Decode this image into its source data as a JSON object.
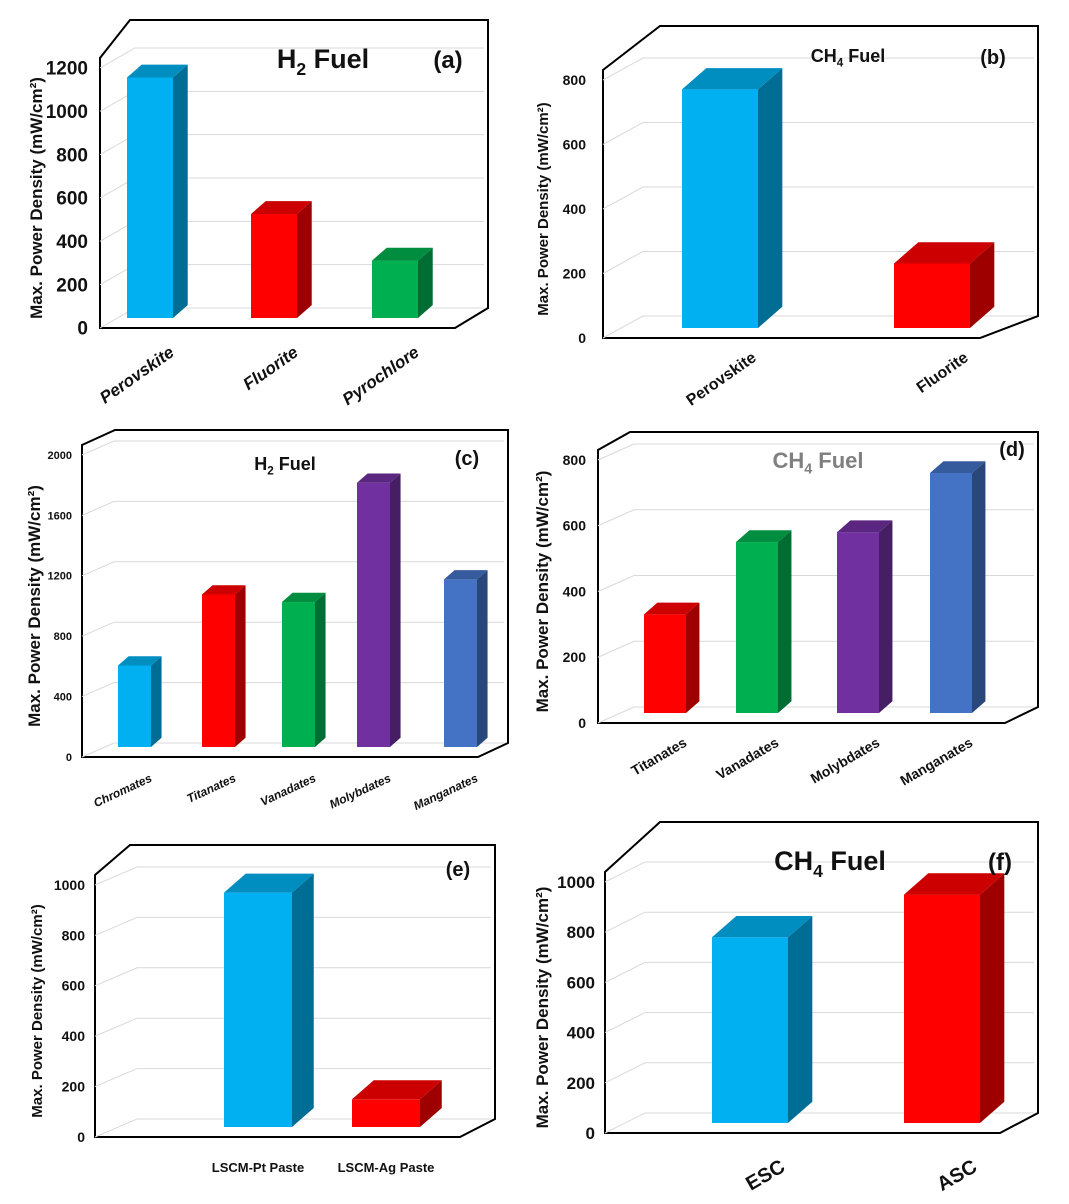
{
  "colors": {
    "blue_light": "#00B0F0",
    "red": "#FF0000",
    "green": "#00B050",
    "purple": "#7030A0",
    "blue_dark": "#4472C4"
  },
  "chart_data": [
    {
      "panel": "(a)",
      "type": "bar",
      "title": "H₂ Fuel",
      "ylabel": "Max. Power Density (mW/cm²)",
      "xlabel": "",
      "ylim": [
        0,
        1200
      ],
      "yticks": [
        0,
        200,
        400,
        600,
        800,
        1000,
        1200
      ],
      "categories": [
        "Perovskite",
        "Fluorite",
        "Pyrochlore"
      ],
      "values": [
        1110,
        480,
        265
      ],
      "colors": [
        "#00B0F0",
        "#FF0000",
        "#00B050"
      ]
    },
    {
      "panel": "(b)",
      "type": "bar",
      "title": "CH₄ Fuel",
      "ylabel": "Max. Power Density (mW/cm²)",
      "xlabel": "",
      "ylim": [
        0,
        800
      ],
      "yticks": [
        0,
        200,
        400,
        600,
        800
      ],
      "categories": [
        "Perovskite",
        "Fluorite"
      ],
      "values": [
        740,
        200
      ],
      "colors": [
        "#00B0F0",
        "#FF0000"
      ]
    },
    {
      "panel": "(c)",
      "type": "bar",
      "title": "H₂ Fuel",
      "ylabel": "Max. Power Density (mW/cm²)",
      "xlabel": "",
      "ylim": [
        0,
        2000
      ],
      "yticks": [
        0,
        400,
        800,
        1200,
        1600,
        2000
      ],
      "categories": [
        "Chromates",
        "Titanates",
        "Vanadates",
        "Molybdates",
        "Manganates"
      ],
      "values": [
        540,
        1010,
        960,
        1750,
        1110
      ],
      "colors": [
        "#00B0F0",
        "#FF0000",
        "#00B050",
        "#7030A0",
        "#4472C4"
      ]
    },
    {
      "panel": "(d)",
      "type": "bar",
      "title": "CH₄ Fuel",
      "ylabel": "Max. Power Density (mW/cm²)",
      "xlabel": "",
      "ylim": [
        0,
        800
      ],
      "yticks": [
        0,
        200,
        400,
        600,
        800
      ],
      "categories": [
        "Titanates",
        "Vanadates",
        "Molybdates",
        "Manganates"
      ],
      "values": [
        300,
        520,
        550,
        730
      ],
      "colors": [
        "#FF0000",
        "#00B050",
        "#7030A0",
        "#4472C4"
      ]
    },
    {
      "panel": "(e)",
      "type": "bar",
      "title": "",
      "ylabel": "Max. Power Density (mW/cm²)",
      "xlabel": "",
      "ylim": [
        0,
        1000
      ],
      "yticks": [
        0,
        200,
        400,
        600,
        800,
        1000
      ],
      "categories": [
        "LSCM-Pt Paste",
        "LSCM-Ag Paste"
      ],
      "values": [
        930,
        110
      ],
      "colors": [
        "#00B0F0",
        "#FF0000"
      ]
    },
    {
      "panel": "(f)",
      "type": "bar",
      "title": "CH₄ Fuel",
      "ylabel": "Max. Power Density (mW/cm²)",
      "xlabel": "",
      "ylim": [
        0,
        1000
      ],
      "yticks": [
        0,
        200,
        400,
        600,
        800,
        1000
      ],
      "categories": [
        "ESC",
        "ASC"
      ],
      "values": [
        740,
        910
      ],
      "colors": [
        "#00B0F0",
        "#FF0000"
      ]
    }
  ]
}
